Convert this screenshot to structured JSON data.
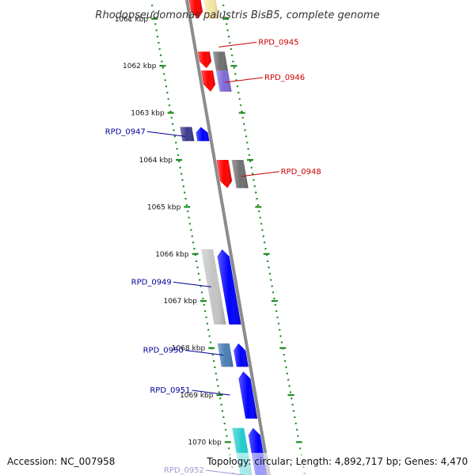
{
  "title": "Rhodopseudomonas palustris BisB5, complete genome",
  "footer": {
    "accession": "Accession: NC_007958",
    "topology": "Topology: circular; Length: 4,892,717 bp; Genes: 4,470"
  },
  "colors": {
    "backbone": "#8c8c8c",
    "ruler": "#1f8a1f",
    "label_forward": "#cc0000",
    "label_reverse": "#000099",
    "red": "#ff0000",
    "gray": "#707070",
    "lightgray": "#c4c4c4",
    "purple": "#7d6ad6",
    "navy": "#3b3a8c",
    "blue": "#0000ff",
    "steel": "#4a7fb5",
    "cyan": "#22cccc",
    "yellow": "#f2e6a0"
  },
  "ruler": {
    "start_kbp": 1060.6,
    "end_kbp": 1070.7,
    "tick_labels": [
      "1061 kbp",
      "1062 kbp",
      "1063 kbp",
      "1064 kbp",
      "1065 kbp",
      "1066 kbp",
      "1067 kbp",
      "1068 kbp",
      "1069 kbp",
      "1070 kbp"
    ]
  },
  "features": [
    {
      "start": 1060.55,
      "end": 1061.0,
      "strand": "forward",
      "color": "red"
    },
    {
      "start": 1060.55,
      "end": 1061.0,
      "strand": "forward",
      "color": "yellow",
      "lane": 2
    },
    {
      "start": 1061.7,
      "end": 1062.05,
      "strand": "forward",
      "color": "red"
    },
    {
      "start": 1061.7,
      "end": 1062.1,
      "strand": "forward",
      "color": "gray",
      "lane": 2
    },
    {
      "start": 1062.1,
      "end": 1062.55,
      "strand": "forward",
      "color": "red"
    },
    {
      "start": 1062.1,
      "end": 1062.55,
      "strand": "forward",
      "color": "purple",
      "lane": 2
    },
    {
      "start": 1063.3,
      "end": 1063.6,
      "strand": "reverse",
      "color": "navy",
      "lane": 2
    },
    {
      "start": 1063.3,
      "end": 1063.6,
      "strand": "reverse",
      "color": "blue"
    },
    {
      "start": 1064.0,
      "end": 1064.6,
      "strand": "forward",
      "color": "red"
    },
    {
      "start": 1064.0,
      "end": 1064.6,
      "strand": "forward",
      "color": "gray",
      "lane": 2
    },
    {
      "start": 1065.9,
      "end": 1067.5,
      "strand": "reverse",
      "color": "lightgray",
      "lane": 2
    },
    {
      "start": 1065.9,
      "end": 1067.5,
      "strand": "reverse",
      "color": "blue"
    },
    {
      "start": 1067.9,
      "end": 1068.4,
      "strand": "reverse",
      "color": "steel",
      "lane": 2
    },
    {
      "start": 1067.9,
      "end": 1068.4,
      "strand": "reverse",
      "color": "blue"
    },
    {
      "start": 1068.5,
      "end": 1069.5,
      "strand": "reverse",
      "color": "blue"
    },
    {
      "start": 1069.7,
      "end": 1070.8,
      "strand": "reverse",
      "color": "cyan",
      "lane": 2
    },
    {
      "start": 1069.7,
      "end": 1070.8,
      "strand": "reverse",
      "color": "blue"
    }
  ],
  "labels": [
    {
      "text": "RPD_0945",
      "strand": "forward",
      "kbp": 1061.6
    },
    {
      "text": "RPD_0946",
      "strand": "forward",
      "kbp": 1062.35
    },
    {
      "text": "RPD_0947",
      "strand": "reverse",
      "kbp": 1063.5
    },
    {
      "text": "RPD_0948",
      "strand": "forward",
      "kbp": 1064.35
    },
    {
      "text": "RPD_0949",
      "strand": "reverse",
      "kbp": 1066.7
    },
    {
      "text": "RPD_0950",
      "strand": "reverse",
      "kbp": 1068.15
    },
    {
      "text": "RPD_0951",
      "strand": "reverse",
      "kbp": 1069.0
    },
    {
      "text": "RPD_0952",
      "strand": "reverse",
      "kbp": 1070.7
    }
  ]
}
